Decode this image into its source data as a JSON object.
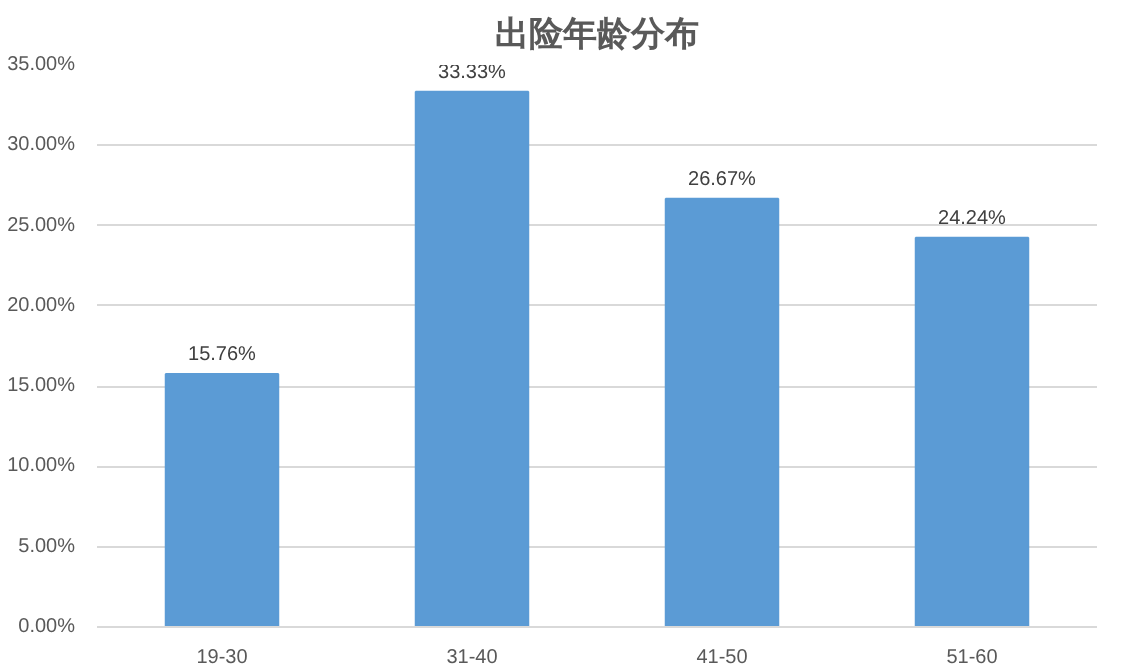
{
  "chart_data": {
    "type": "bar",
    "title": "出险年龄分布",
    "categories": [
      "19-30",
      "31-40",
      "41-50",
      "51-60"
    ],
    "values": [
      15.76,
      33.33,
      26.67,
      24.24
    ],
    "value_labels": [
      "15.76%",
      "33.33%",
      "26.67%",
      "24.24%"
    ],
    "color": "#5b9bd5",
    "ylim": [
      0,
      35
    ],
    "yticks": [
      {
        "value": 0,
        "label": "0.00%"
      },
      {
        "value": 5,
        "label": "5.00%"
      },
      {
        "value": 10,
        "label": "10.00%"
      },
      {
        "value": 15,
        "label": "15.00%"
      },
      {
        "value": 20,
        "label": "20.00%"
      },
      {
        "value": 25,
        "label": "25.00%"
      },
      {
        "value": 30,
        "label": "30.00%"
      },
      {
        "value": 35,
        "label": "35.00%"
      }
    ],
    "grid": "y"
  }
}
